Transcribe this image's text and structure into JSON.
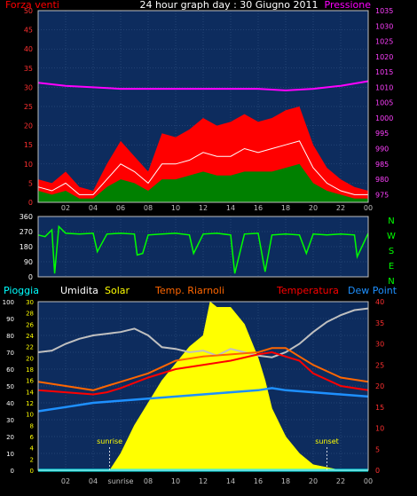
{
  "title": "24 hour graph day : 30 Giugno 2011",
  "chart_data": [
    {
      "type": "line",
      "panel": "wind_pressure",
      "left_label": "Forza venti",
      "right_label": "Pressione",
      "y_left": {
        "min": 0,
        "max": 50,
        "ticks": [
          "0",
          "5",
          "10",
          "15",
          "20",
          "25",
          "30",
          "35",
          "40",
          "45",
          "50"
        ]
      },
      "y_right": {
        "min": 972.5,
        "max": 1035,
        "ticks": [
          "975",
          "980",
          "985",
          "990",
          "995",
          "1000",
          "1005",
          "1010",
          "1015",
          "1020",
          "1025",
          "1030",
          "1035"
        ]
      },
      "x_ticks": [
        "02",
        "04",
        "06",
        "08",
        "10",
        "12",
        "14",
        "16",
        "18",
        "20",
        "22",
        "00"
      ],
      "series": [
        {
          "color": "#ff0000",
          "points": [
            [
              0,
              6
            ],
            [
              1,
              5
            ],
            [
              2,
              8
            ],
            [
              3,
              4
            ],
            [
              4,
              3
            ],
            [
              5,
              10
            ],
            [
              6,
              16
            ],
            [
              7,
              12
            ],
            [
              8,
              8
            ],
            [
              9,
              18
            ],
            [
              10,
              17
            ],
            [
              11,
              19
            ],
            [
              12,
              22
            ],
            [
              13,
              20
            ],
            [
              14,
              21
            ],
            [
              15,
              23
            ],
            [
              16,
              21
            ],
            [
              17,
              22
            ],
            [
              18,
              24
            ],
            [
              19,
              25
            ],
            [
              20,
              15
            ],
            [
              21,
              9
            ],
            [
              22,
              6
            ],
            [
              23,
              4
            ],
            [
              24,
              3
            ]
          ]
        },
        {
          "color": "#ffffff",
          "points": [
            [
              0,
              4
            ],
            [
              1,
              3
            ],
            [
              2,
              5
            ],
            [
              3,
              2
            ],
            [
              4,
              2
            ],
            [
              5,
              6
            ],
            [
              6,
              10
            ],
            [
              7,
              8
            ],
            [
              8,
              5
            ],
            [
              9,
              10
            ],
            [
              10,
              10
            ],
            [
              11,
              11
            ],
            [
              12,
              13
            ],
            [
              13,
              12
            ],
            [
              14,
              12
            ],
            [
              15,
              14
            ],
            [
              16,
              13
            ],
            [
              17,
              14
            ],
            [
              18,
              15
            ],
            [
              19,
              16
            ],
            [
              20,
              9
            ],
            [
              21,
              5
            ],
            [
              22,
              3
            ],
            [
              23,
              2
            ],
            [
              24,
              2
            ]
          ]
        },
        {
          "color": "#008000",
          "points": [
            [
              0,
              3
            ],
            [
              1,
              2
            ],
            [
              2,
              3
            ],
            [
              3,
              1
            ],
            [
              4,
              1
            ],
            [
              5,
              4
            ],
            [
              6,
              6
            ],
            [
              7,
              5
            ],
            [
              8,
              3
            ],
            [
              9,
              6
            ],
            [
              10,
              6
            ],
            [
              11,
              7
            ],
            [
              12,
              8
            ],
            [
              13,
              7
            ],
            [
              14,
              7
            ],
            [
              15,
              8
            ],
            [
              16,
              8
            ],
            [
              17,
              8
            ],
            [
              18,
              9
            ],
            [
              19,
              10
            ],
            [
              20,
              5
            ],
            [
              21,
              3
            ],
            [
              22,
              2
            ],
            [
              23,
              1
            ],
            [
              24,
              1
            ]
          ]
        },
        {
          "color": "#ff00ff",
          "points": [
            [
              0,
              1011.5
            ],
            [
              2,
              1010.5
            ],
            [
              4,
              1010
            ],
            [
              6,
              1009.5
            ],
            [
              8,
              1009.5
            ],
            [
              10,
              1009.5
            ],
            [
              12,
              1009.5
            ],
            [
              14,
              1009.5
            ],
            [
              16,
              1009.5
            ],
            [
              18,
              1009
            ],
            [
              20,
              1009.5
            ],
            [
              22,
              1010.5
            ],
            [
              24,
              1012
            ]
          ]
        }
      ]
    },
    {
      "type": "line",
      "panel": "wind_direction",
      "y_left": {
        "min": 0,
        "max": 360,
        "ticks": [
          "0",
          "90",
          "180",
          "270",
          "360"
        ]
      },
      "compass": [
        "N",
        "W",
        "S",
        "E",
        "N"
      ],
      "x_ticks": [
        "02",
        "04",
        "06",
        "08",
        "10",
        "12",
        "14",
        "16",
        "18",
        "20",
        "22",
        "00"
      ],
      "series": [
        {
          "color": "#00ff00",
          "points": [
            [
              0,
              250
            ],
            [
              0.5,
              240
            ],
            [
              1,
              280
            ],
            [
              1.2,
              20
            ],
            [
              1.5,
              300
            ],
            [
              2,
              260
            ],
            [
              3,
              255
            ],
            [
              4,
              260
            ],
            [
              4.3,
              150
            ],
            [
              5,
              255
            ],
            [
              6,
              260
            ],
            [
              7,
              255
            ],
            [
              7.2,
              130
            ],
            [
              7.6,
              140
            ],
            [
              8,
              250
            ],
            [
              9,
              255
            ],
            [
              10,
              260
            ],
            [
              11,
              250
            ],
            [
              11.3,
              140
            ],
            [
              12,
              255
            ],
            [
              13,
              260
            ],
            [
              14,
              250
            ],
            [
              14.3,
              20
            ],
            [
              15,
              255
            ],
            [
              16,
              260
            ],
            [
              16.5,
              30
            ],
            [
              17,
              250
            ],
            [
              18,
              255
            ],
            [
              19,
              250
            ],
            [
              19.5,
              140
            ],
            [
              20,
              255
            ],
            [
              21,
              250
            ],
            [
              22,
              255
            ],
            [
              23,
              250
            ],
            [
              23.2,
              120
            ],
            [
              24,
              260
            ]
          ]
        }
      ]
    },
    {
      "type": "area",
      "panel": "temp_humidity_solar",
      "legend": [
        {
          "label": "Pioggia",
          "color": "#00ffff"
        },
        {
          "label": "Umidita",
          "color": "#ffffff"
        },
        {
          "label": "Solar",
          "color": "#ffff00"
        },
        {
          "label": "Temp. Riarnoli",
          "color": "#ff6600"
        },
        {
          "label": "Temperatura",
          "color": "#ff0000"
        },
        {
          "label": "Dew Point",
          "color": "#1e90ff"
        }
      ],
      "y_left": {
        "min": 0,
        "max": 100,
        "ticks": [
          "0",
          "10",
          "20",
          "30",
          "40",
          "50",
          "60",
          "70",
          "80",
          "90",
          "100"
        ]
      },
      "y_mid": {
        "min": 0,
        "max": 30,
        "ticks": [
          "0",
          "2",
          "4",
          "6",
          "8",
          "10",
          "12",
          "14",
          "16",
          "18",
          "20",
          "22",
          "24",
          "26",
          "28",
          "30"
        ]
      },
      "y_right": {
        "min": 0,
        "max": 40,
        "ticks": [
          "0",
          "5",
          "10",
          "15",
          "20",
          "25",
          "30",
          "35",
          "40"
        ]
      },
      "x_ticks": [
        "02",
        "04",
        "sunrise",
        "08",
        "10",
        "12",
        "14",
        "16",
        "18",
        "20",
        "22",
        "00"
      ],
      "annotations": [
        {
          "text": "sunrise",
          "x": 5.2
        },
        {
          "text": "sunset",
          "x": 21
        }
      ],
      "series": [
        {
          "name": "Umidita",
          "color": "#c0c0c0",
          "points": [
            [
              0,
              70
            ],
            [
              1,
              71
            ],
            [
              2,
              75
            ],
            [
              3,
              78
            ],
            [
              4,
              80
            ],
            [
              5,
              81
            ],
            [
              6,
              82
            ],
            [
              7,
              84
            ],
            [
              8,
              80
            ],
            [
              9,
              73
            ],
            [
              10,
              72
            ],
            [
              11,
              70
            ],
            [
              12,
              71
            ],
            [
              13,
              68
            ],
            [
              14,
              72
            ],
            [
              15,
              70
            ],
            [
              16,
              68
            ],
            [
              17,
              67
            ],
            [
              18,
              70
            ],
            [
              19,
              75
            ],
            [
              20,
              82
            ],
            [
              21,
              88
            ],
            [
              22,
              92
            ],
            [
              23,
              95
            ],
            [
              24,
              96
            ]
          ]
        },
        {
          "name": "Temp. Riarnoli",
          "color": "#ff6600",
          "points": [
            [
              0,
              21
            ],
            [
              2,
              20
            ],
            [
              4,
              19
            ],
            [
              5,
              20
            ],
            [
              6,
              21
            ],
            [
              8,
              23
            ],
            [
              10,
              26
            ],
            [
              12,
              27
            ],
            [
              14,
              27.5
            ],
            [
              16,
              28
            ],
            [
              17,
              29
            ],
            [
              18,
              29
            ],
            [
              19,
              27
            ],
            [
              20,
              25
            ],
            [
              22,
              22
            ],
            [
              24,
              21
            ]
          ]
        },
        {
          "name": "Temperatura",
          "color": "#ff0000",
          "points": [
            [
              0,
              19
            ],
            [
              2,
              18.5
            ],
            [
              4,
              18
            ],
            [
              5,
              18.5
            ],
            [
              6,
              19.5
            ],
            [
              8,
              22
            ],
            [
              10,
              24
            ],
            [
              12,
              25
            ],
            [
              14,
              26
            ],
            [
              16,
              27.5
            ],
            [
              17,
              28
            ],
            [
              18,
              27
            ],
            [
              19,
              26
            ],
            [
              20,
              23
            ],
            [
              22,
              20
            ],
            [
              24,
              19
            ]
          ]
        },
        {
          "name": "Dew Point",
          "color": "#1e90ff",
          "points": [
            [
              0,
              14
            ],
            [
              2,
              15
            ],
            [
              4,
              16
            ],
            [
              6,
              16.5
            ],
            [
              8,
              17
            ],
            [
              10,
              17.5
            ],
            [
              12,
              18
            ],
            [
              14,
              18.5
            ],
            [
              16,
              19
            ],
            [
              17,
              19.5
            ],
            [
              18,
              19
            ],
            [
              20,
              18.5
            ],
            [
              22,
              18
            ],
            [
              24,
              17.5
            ]
          ]
        },
        {
          "name": "Solar",
          "color": "#ffff00",
          "points": [
            [
              4.5,
              0
            ],
            [
              5.2,
              0
            ],
            [
              6,
              3
            ],
            [
              7,
              8
            ],
            [
              8,
              12
            ],
            [
              9,
              16
            ],
            [
              10,
              19
            ],
            [
              11,
              22
            ],
            [
              12,
              24
            ],
            [
              12.5,
              30
            ],
            [
              13,
              29
            ],
            [
              14,
              29
            ],
            [
              15,
              26
            ],
            [
              16,
              20
            ],
            [
              16.5,
              16
            ],
            [
              17,
              11
            ],
            [
              18,
              6
            ],
            [
              19,
              3
            ],
            [
              20,
              1
            ],
            [
              21,
              0.5
            ],
            [
              22,
              0
            ]
          ]
        },
        {
          "name": "Pioggia",
          "color": "#00ffff",
          "points": [
            [
              0,
              0
            ],
            [
              24,
              0
            ]
          ]
        }
      ]
    }
  ]
}
